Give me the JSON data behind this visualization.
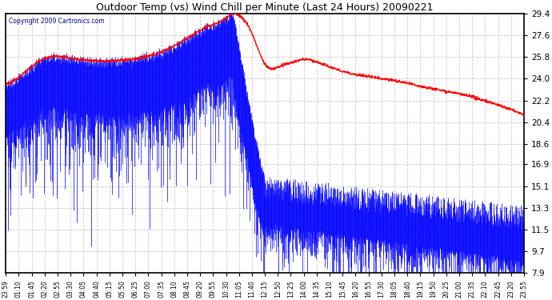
{
  "title": "Outdoor Temp (vs) Wind Chill per Minute (Last 24 Hours) 20090221",
  "copyright": "Copyright 2009 Cartronics.com",
  "y_ticks": [
    7.9,
    9.7,
    11.5,
    13.3,
    15.1,
    16.9,
    18.6,
    20.4,
    22.2,
    24.0,
    25.8,
    27.6,
    29.4
  ],
  "ylim": [
    7.9,
    29.4
  ],
  "x_labels": [
    "23:59",
    "01:10",
    "01:45",
    "02:20",
    "02:55",
    "03:30",
    "04:05",
    "04:40",
    "05:15",
    "05:50",
    "06:25",
    "07:00",
    "07:35",
    "08:10",
    "08:45",
    "09:20",
    "09:55",
    "10:30",
    "11:05",
    "11:40",
    "12:15",
    "12:50",
    "13:25",
    "14:00",
    "14:35",
    "15:10",
    "15:45",
    "16:20",
    "16:55",
    "17:30",
    "18:05",
    "18:40",
    "19:15",
    "19:50",
    "20:25",
    "21:00",
    "21:35",
    "22:10",
    "22:45",
    "23:20",
    "23:55"
  ],
  "background_color": "#ffffff",
  "plot_bg_color": "#ffffff",
  "grid_color": "#c8c8c8",
  "blue_color": "#0000ff",
  "red_color": "#ff0000",
  "title_color": "#000000",
  "border_color": "#000000",
  "copyright_color": "#000080",
  "n_points": 1440
}
